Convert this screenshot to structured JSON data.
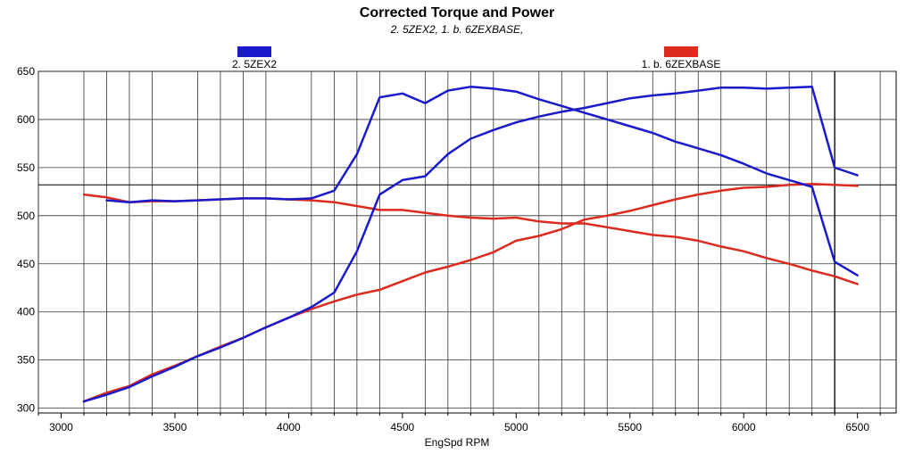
{
  "chart_data": {
    "type": "line",
    "title": "Corrected Torque and Power",
    "subtitle": "2. 5ZEX2, 1. b. 6ZEXBASE,",
    "xlabel": "EngSpd  RPM",
    "ylabel": "",
    "xlim": [
      2900,
      6670
    ],
    "ylim": [
      295,
      650
    ],
    "xticks": [
      3000,
      3500,
      4000,
      4500,
      5000,
      5500,
      6000,
      6500
    ],
    "yticks": [
      300,
      350,
      400,
      450,
      500,
      550,
      600,
      650
    ],
    "x_minor_step": 100,
    "y_grid_step": 50,
    "cursor_x": 6400,
    "reference_y": 532,
    "grid": true,
    "legend": [
      {
        "name": "2. 5ZEX2",
        "color": "#1a1acc"
      },
      {
        "name": "1. b. 6ZEXBASE",
        "color": "#dd2a1f"
      }
    ],
    "series": [
      {
        "name": "2. 5ZEX2 torque",
        "color": "#1a1acc",
        "x": [
          3200,
          3300,
          3400,
          3500,
          3600,
          3700,
          3800,
          3900,
          4000,
          4100,
          4200,
          4300,
          4400,
          4500,
          4600,
          4700,
          4800,
          4900,
          5000,
          5100,
          5200,
          5300,
          5400,
          5500,
          5600,
          5700,
          5800,
          5900,
          6000,
          6100,
          6200,
          6300,
          6400,
          6500
        ],
        "y": [
          516,
          514,
          516,
          515,
          516,
          517,
          518,
          518,
          517,
          518,
          526,
          564,
          623,
          627,
          617,
          630,
          634,
          632,
          629,
          621,
          614,
          607,
          600,
          593,
          586,
          577,
          570,
          563,
          554,
          544,
          537,
          530,
          452,
          438
        ]
      },
      {
        "name": "2. 5ZEX2 power",
        "color": "#1a1acc",
        "x": [
          3100,
          3200,
          3300,
          3400,
          3500,
          3600,
          3700,
          3800,
          3900,
          4000,
          4100,
          4200,
          4300,
          4400,
          4500,
          4600,
          4700,
          4800,
          4900,
          5000,
          5100,
          5200,
          5300,
          5400,
          5500,
          5600,
          5700,
          5800,
          5900,
          6000,
          6100,
          6200,
          6300,
          6400,
          6500
        ],
        "y": [
          307,
          314,
          322,
          333,
          343,
          354,
          363,
          373,
          384,
          394,
          405,
          420,
          463,
          522,
          537,
          541,
          564,
          580,
          589,
          597,
          603,
          608,
          612,
          617,
          622,
          625,
          627,
          630,
          633,
          633,
          632,
          633,
          634,
          550,
          542
        ]
      },
      {
        "name": "1. b. 6ZEXBASE torque",
        "color": "#dd2a1f",
        "x": [
          3100,
          3200,
          3300,
          3400,
          3500,
          3600,
          3700,
          3800,
          3900,
          4000,
          4100,
          4200,
          4300,
          4400,
          4500,
          4600,
          4700,
          4800,
          4900,
          5000,
          5100,
          5200,
          5300,
          5400,
          5500,
          5600,
          5700,
          5800,
          5900,
          6000,
          6100,
          6200,
          6300,
          6400,
          6500
        ],
        "y": [
          522,
          519,
          514,
          515,
          515,
          516,
          517,
          518,
          518,
          517,
          516,
          514,
          510,
          506,
          506,
          503,
          500,
          498,
          497,
          498,
          494,
          492,
          492,
          488,
          484,
          480,
          478,
          474,
          468,
          463,
          456,
          450,
          443,
          437,
          429
        ]
      },
      {
        "name": "1. b. 6ZEXBASE power",
        "color": "#dd2a1f",
        "x": [
          3100,
          3200,
          3300,
          3400,
          3500,
          3600,
          3700,
          3800,
          3900,
          4000,
          4100,
          4200,
          4300,
          4400,
          4500,
          4600,
          4700,
          4800,
          4900,
          5000,
          5100,
          5200,
          5300,
          5400,
          5500,
          5600,
          5700,
          5800,
          5900,
          6000,
          6100,
          6200,
          6300,
          6400,
          6500
        ],
        "y": [
          307,
          316,
          323,
          335,
          344,
          354,
          364,
          373,
          384,
          394,
          403,
          411,
          418,
          423,
          432,
          441,
          447,
          454,
          462,
          474,
          479,
          486,
          496,
          500,
          505,
          511,
          517,
          522,
          526,
          529,
          530,
          532,
          533,
          532,
          531
        ]
      }
    ]
  }
}
